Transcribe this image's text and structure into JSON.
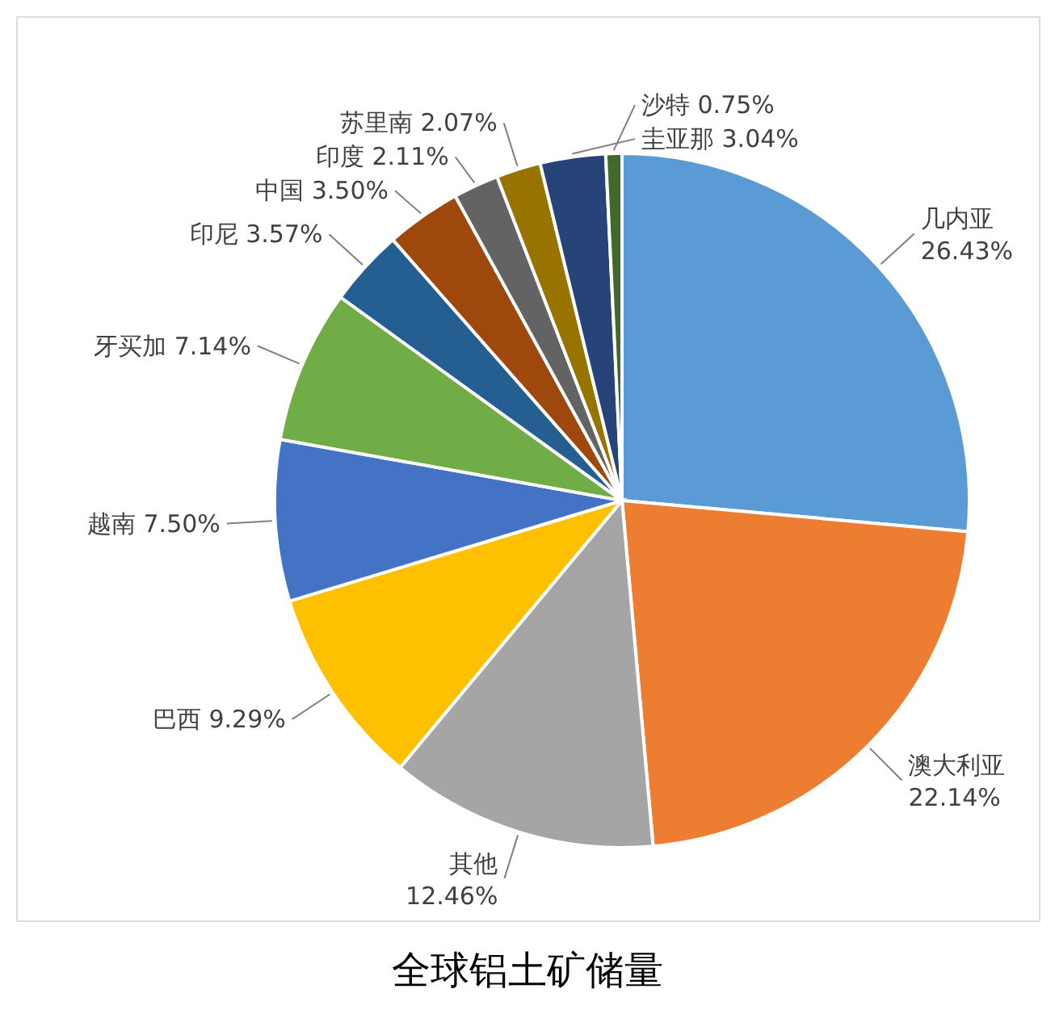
{
  "chart_data": {
    "type": "pie",
    "title": "全球铝土矿储量",
    "categories": [
      "几内亚",
      "澳大利亚",
      "其他",
      "巴西",
      "越南",
      "牙买加",
      "印尼",
      "中国",
      "印度",
      "苏里南",
      "圭亚那",
      "沙特"
    ],
    "values": [
      26.43,
      22.14,
      12.46,
      9.29,
      7.5,
      7.14,
      3.57,
      3.5,
      2.11,
      2.07,
      3.04,
      0.75
    ],
    "value_labels": [
      "26.43%",
      "22.14%",
      "12.46%",
      "9.29%",
      "7.50%",
      "7.14%",
      "3.57%",
      "3.50%",
      "2.11%",
      "2.07%",
      "3.04%",
      "0.75%"
    ],
    "colors": [
      "#5b9bd5",
      "#ed7d31",
      "#a5a5a5",
      "#ffc000",
      "#4472c4",
      "#70ad47",
      "#255e91",
      "#9e480e",
      "#636363",
      "#997300",
      "#264478",
      "#43682b"
    ],
    "legend": false
  }
}
